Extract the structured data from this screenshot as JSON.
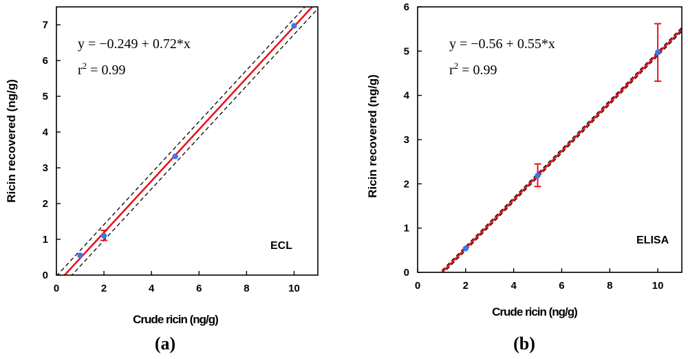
{
  "chart_data": [
    {
      "type": "scatter",
      "panel_label": "(a)",
      "method": "ECL",
      "equation": "y = −0.249 + 0.72*x",
      "r2_label": "r",
      "r2_sup": "2",
      "r2_value": " = 0.99",
      "xlabel": "Crude ricin (ng/g)",
      "ylabel": "Ricin recovered  (ng/g)",
      "xlim": [
        0,
        11
      ],
      "ylim": [
        0,
        7.5
      ],
      "xticks": [
        0,
        2,
        4,
        6,
        8,
        10
      ],
      "yticks": [
        0,
        1,
        2,
        3,
        4,
        5,
        6,
        7
      ],
      "points": {
        "x": [
          1,
          2,
          5,
          10
        ],
        "y": [
          0.55,
          1.1,
          3.32,
          6.97
        ]
      },
      "error_bars": [
        {
          "x": 2,
          "low": 0.97,
          "high": 1.25
        }
      ],
      "fit": {
        "intercept": -0.249,
        "slope": 0.72,
        "color": "#e8141b"
      },
      "ci_offsets": [
        0.22,
        -0.22
      ],
      "point_color": "#3b78e7",
      "error_color": "#e8141b"
    },
    {
      "type": "scatter",
      "panel_label": "(b)",
      "method": "ELISA",
      "equation": "y = −0.56 + 0.55*x",
      "r2_label": "r",
      "r2_sup": "2",
      "r2_value": " = 0.99",
      "xlabel": "Crude ricin (ng/g)",
      "ylabel": "Ricin recovered  (ng/g)",
      "xlim": [
        0,
        11
      ],
      "ylim": [
        0,
        6
      ],
      "xticks": [
        0,
        2,
        4,
        6,
        8,
        10
      ],
      "yticks": [
        0,
        1,
        2,
        3,
        4,
        5,
        6
      ],
      "points": {
        "x": [
          2,
          5,
          10
        ],
        "y": [
          0.54,
          2.19,
          4.97
        ]
      },
      "error_bars": [
        {
          "x": 5,
          "low": 1.94,
          "high": 2.45
        },
        {
          "x": 10,
          "low": 4.32,
          "high": 5.62
        }
      ],
      "fit": {
        "intercept": -0.56,
        "slope": 0.55,
        "color": "#e8141b"
      },
      "ci_offsets": [
        0.045,
        -0.045
      ],
      "point_color": "#3b78e7",
      "error_color": "#e8141b"
    }
  ]
}
